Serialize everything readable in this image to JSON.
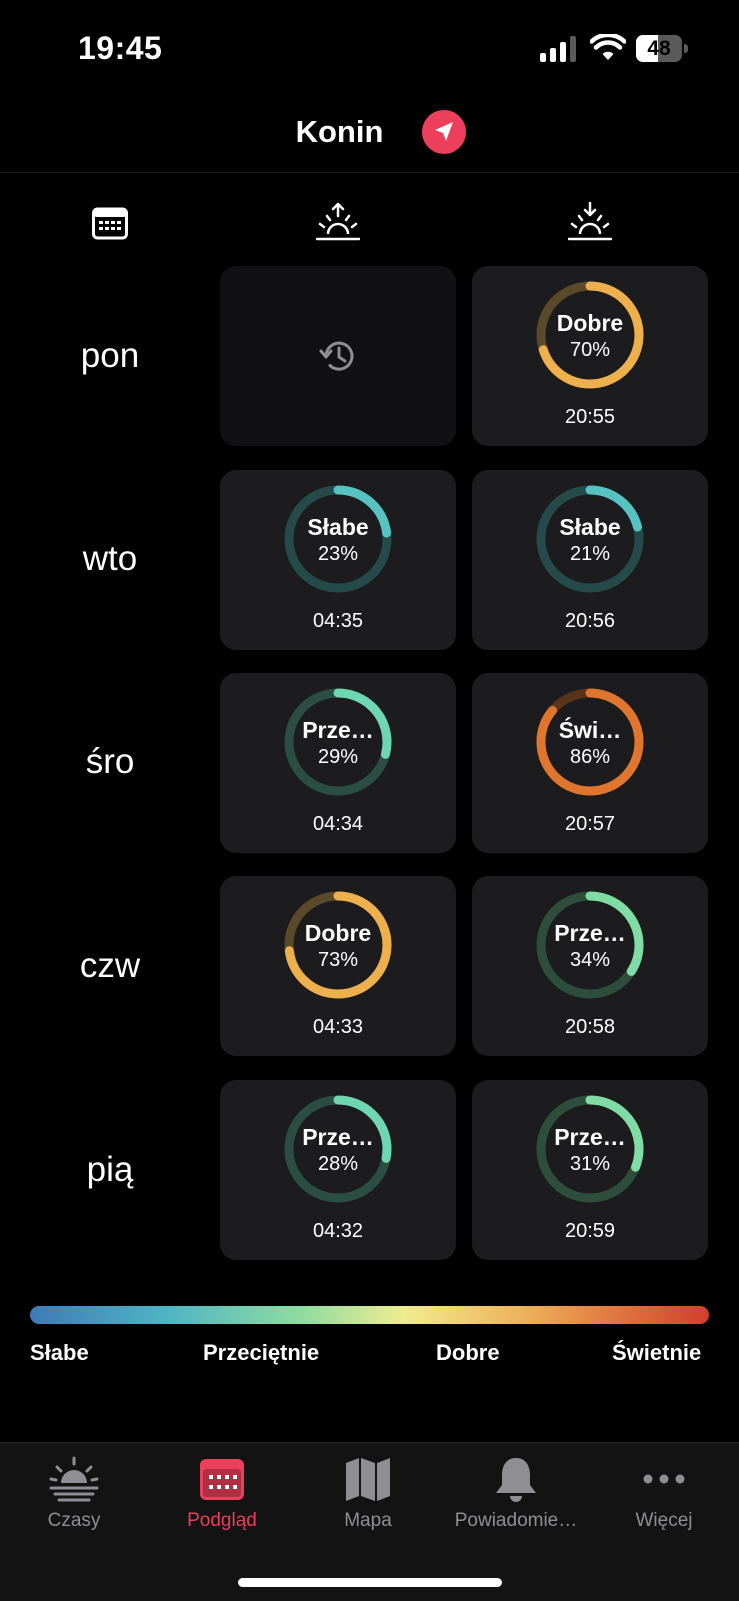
{
  "status_bar": {
    "time": "19:45",
    "battery": "48",
    "battery_level": 0.48
  },
  "header": {
    "city": "Konin"
  },
  "colors": {
    "accent": "#eb3f5b",
    "past_cell": "#111113",
    "cell": "#1c1c1e"
  },
  "days": [
    {
      "label": "pon",
      "sunrise": {
        "past": true
      },
      "sunset": {
        "label": "Dobre",
        "percent": "70%",
        "value": 0.7,
        "time": "20:55",
        "color": "#eeb04c",
        "track": "#5a4a2a"
      }
    },
    {
      "label": "wto",
      "sunrise": {
        "label": "Słabe",
        "percent": "23%",
        "value": 0.23,
        "time": "04:35",
        "color": "#56c3c2",
        "track": "#244a4a"
      },
      "sunset": {
        "label": "Słabe",
        "percent": "21%",
        "value": 0.21,
        "time": "20:56",
        "color": "#56c3c2",
        "track": "#244a4a"
      }
    },
    {
      "label": "śro",
      "sunrise": {
        "label": "Prze…",
        "percent": "29%",
        "value": 0.29,
        "time": "04:34",
        "color": "#6fd6b2",
        "track": "#2a4e42"
      },
      "sunset": {
        "label": "Świ…",
        "percent": "86%",
        "value": 0.86,
        "time": "20:57",
        "color": "#e0762e",
        "track": "#5a3418"
      }
    },
    {
      "label": "czw",
      "sunrise": {
        "label": "Dobre",
        "percent": "73%",
        "value": 0.73,
        "time": "04:33",
        "color": "#eeb04c",
        "track": "#5a4a2a"
      },
      "sunset": {
        "label": "Prze…",
        "percent": "34%",
        "value": 0.34,
        "time": "20:58",
        "color": "#7edca4",
        "track": "#2e4e3c"
      }
    },
    {
      "label": "pią",
      "sunrise": {
        "label": "Prze…",
        "percent": "28%",
        "value": 0.28,
        "time": "04:32",
        "color": "#6fd6b2",
        "track": "#2a4e42"
      },
      "sunset": {
        "label": "Prze…",
        "percent": "31%",
        "value": 0.31,
        "time": "20:59",
        "color": "#7edca4",
        "track": "#2e4e3c"
      }
    }
  ],
  "legend": [
    "Słabe",
    "Przeciętnie",
    "Dobre",
    "Świetnie"
  ],
  "tabs": [
    {
      "label": "Czasy",
      "icon": "sunrise-icon",
      "active": false
    },
    {
      "label": "Podgląd",
      "icon": "calendar-icon",
      "active": true
    },
    {
      "label": "Mapa",
      "icon": "map-icon",
      "active": false
    },
    {
      "label": "Powiadomie…",
      "icon": "bell-icon",
      "active": false
    },
    {
      "label": "Więcej",
      "icon": "more-icon",
      "active": false
    }
  ]
}
